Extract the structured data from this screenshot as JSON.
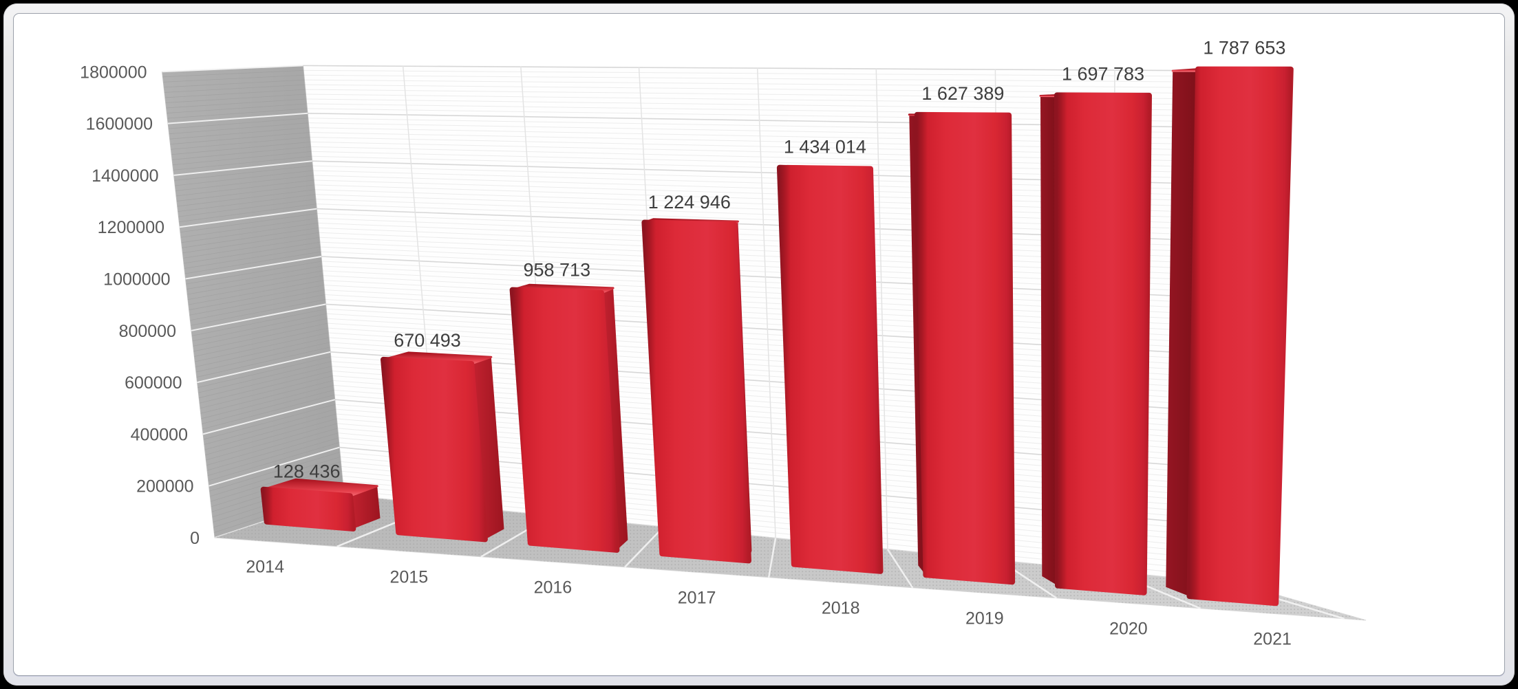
{
  "window": {
    "frame_outer_color": "#000000",
    "frame_band_color": "#e8e8ea",
    "panel_fill": "#ffffff",
    "panel_border": "#9ba0aa"
  },
  "chart_data": {
    "type": "bar",
    "view": "3d-perspective-columns",
    "title": "",
    "xlabel": "",
    "ylabel": "",
    "categories": [
      "2014",
      "2015",
      "2016",
      "2017",
      "2018",
      "2019",
      "2020",
      "2021"
    ],
    "values": [
      128436,
      670493,
      958713,
      1224946,
      1434014,
      1627389,
      1697783,
      1787653
    ],
    "value_labels": [
      "128 436",
      "670 493",
      "958 713",
      "1 224 946",
      "1 434 014",
      "1 627 389",
      "1 697 783",
      "1 787 653"
    ],
    "ylim": [
      0,
      1800000
    ],
    "y_major_step": 200000,
    "y_minor_step": 20000,
    "y_tick_labels": [
      "0",
      "200000",
      "400000",
      "600000",
      "800000",
      "1000000",
      "1200000",
      "1400000",
      "1600000",
      "1800000"
    ],
    "grid": "major-and-minor-on-walls",
    "legend": "none",
    "colors": {
      "bar_front": "#dd2a38",
      "bar_front_edge_dark": "#8e1420",
      "bar_side_left_dark": "#7e1019",
      "bar_side_right": "#c42230",
      "bar_top": "#e6404c",
      "bar_top_bevel": "#f2646e",
      "side_wall": "#a9a9a9",
      "floor": "#c6c6c6",
      "gridline_major_wall": "#f3f3f3",
      "gridline_minor_wall": "#9a9a9a",
      "gridline_major_back": "#d7d7d7",
      "gridline_minor_back": "#ececec",
      "category_separator": "#e3e3e3",
      "axis_text": "#595959",
      "value_text": "#3e3e3e",
      "shadow": "#6e6e6e"
    }
  }
}
